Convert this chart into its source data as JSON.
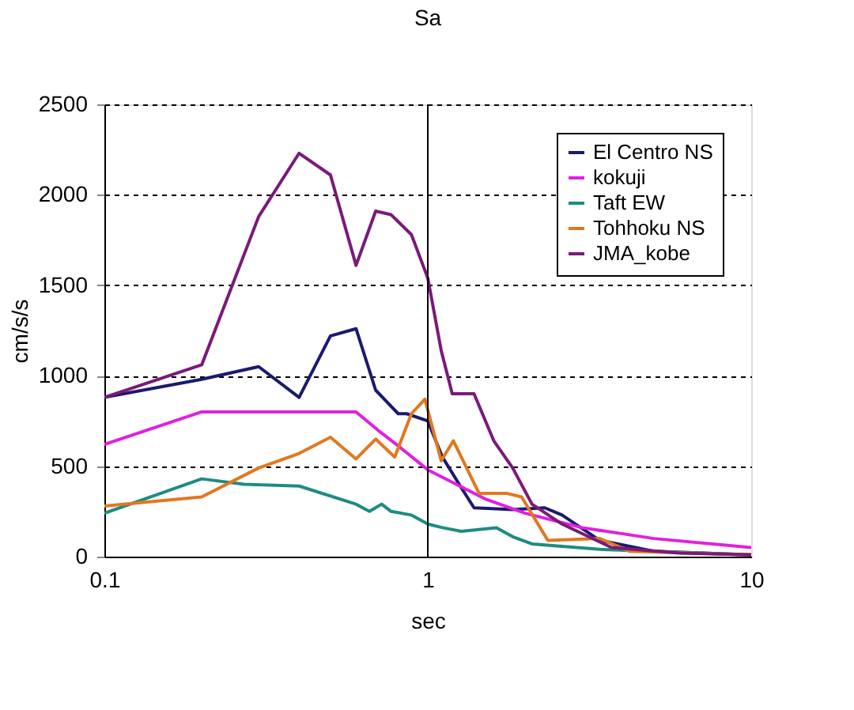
{
  "chart_data": {
    "type": "line",
    "title": "Sa",
    "xlabel": "sec",
    "ylabel": "cm/s/s",
    "log": "x",
    "xlim": [
      0.1,
      10
    ],
    "xticks": [
      0.1,
      1,
      10
    ],
    "ylim": [
      0,
      2500
    ],
    "yticks": [
      0,
      500,
      1000,
      1500,
      2000,
      2500
    ],
    "grid": "y",
    "legend": "top right",
    "marker": "none",
    "line_style": "solid",
    "ref_lines": [
      {
        "axis": "x",
        "value": 1,
        "color": "#000000"
      }
    ],
    "series": [
      {
        "name": "El Centro NS",
        "color": "#1a1a6e",
        "x": [
          0.1,
          0.2,
          0.3,
          0.4,
          0.5,
          0.6,
          0.69,
          0.81,
          0.86,
          1.0,
          1.11,
          1.27,
          1.39,
          1.83,
          2.3,
          2.6,
          3.4,
          5,
          10
        ],
        "values": [
          880,
          980,
          1050,
          880,
          1220,
          1260,
          920,
          790,
          790,
          750,
          550,
          380,
          270,
          260,
          270,
          230,
          90,
          30,
          10
        ]
      },
      {
        "name": "kokuji",
        "color": "#e020e0",
        "x": [
          0.1,
          0.2,
          0.3,
          0.4,
          0.5,
          0.6,
          0.7,
          0.8,
          1.0,
          1.5,
          2,
          3,
          5,
          10
        ],
        "values": [
          620,
          800,
          800,
          800,
          800,
          800,
          700,
          620,
          480,
          320,
          240,
          160,
          100,
          50
        ]
      },
      {
        "name": "Taft EW",
        "color": "#1e8c80",
        "x": [
          0.1,
          0.2,
          0.27,
          0.4,
          0.6,
          0.66,
          0.72,
          0.77,
          0.89,
          1.0,
          1.11,
          1.27,
          1.63,
          1.83,
          2.1,
          3.4,
          10
        ],
        "values": [
          240,
          430,
          400,
          390,
          290,
          250,
          290,
          250,
          230,
          180,
          160,
          140,
          160,
          110,
          70,
          40,
          10
        ]
      },
      {
        "name": "Tohhoku NS",
        "color": "#e07820",
        "x": [
          0.1,
          0.2,
          0.3,
          0.4,
          0.5,
          0.6,
          0.69,
          0.79,
          0.89,
          0.98,
          1.1,
          1.2,
          1.44,
          1.75,
          1.95,
          2.35,
          3.4,
          4.2,
          10
        ],
        "values": [
          280,
          330,
          490,
          570,
          660,
          540,
          650,
          550,
          790,
          870,
          530,
          640,
          350,
          350,
          330,
          90,
          100,
          30,
          10
        ]
      },
      {
        "name": "JMA_kobe",
        "color": "#7a1a7a",
        "x": [
          0.1,
          0.2,
          0.3,
          0.4,
          0.5,
          0.6,
          0.69,
          0.77,
          0.89,
          1.0,
          1.1,
          1.19,
          1.39,
          1.6,
          1.83,
          2.1,
          2.6,
          3.7,
          6.0,
          10
        ],
        "values": [
          880,
          1060,
          1880,
          2230,
          2110,
          1610,
          1910,
          1890,
          1780,
          1540,
          1140,
          900,
          900,
          640,
          490,
          290,
          180,
          50,
          20,
          10
        ]
      }
    ]
  }
}
